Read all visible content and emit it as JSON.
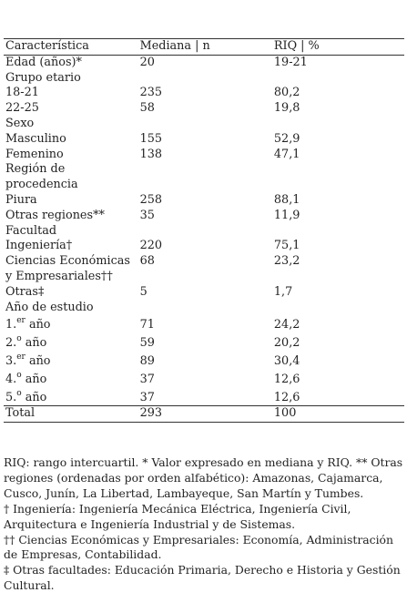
{
  "table": {
    "headers": [
      "Característica",
      "Mediana | n",
      "RIQ | %"
    ],
    "rows": [
      {
        "label": "Edad (años)*",
        "c2": "20",
        "c3": "19-21"
      },
      {
        "label": "Grupo etario",
        "c2": "",
        "c3": ""
      },
      {
        "label": "18-21",
        "c2": "235",
        "c3": "80,2"
      },
      {
        "label": "22-25",
        "c2": "58",
        "c3": "19,8"
      },
      {
        "label": "Sexo",
        "c2": "",
        "c3": ""
      },
      {
        "label": "Masculino",
        "c2": "155",
        "c3": "52,9"
      },
      {
        "label": "Femenino",
        "c2": "138",
        "c3": "47,1"
      },
      {
        "label": "Región de procedencia",
        "c2": "",
        "c3": ""
      },
      {
        "label": "Piura",
        "c2": "258",
        "c3": "88,1"
      },
      {
        "label": "Otras regiones**",
        "c2": "35",
        "c3": "11,9"
      },
      {
        "label": "Facultad",
        "c2": "",
        "c3": ""
      },
      {
        "label": "Ingeniería†",
        "c2": "220",
        "c3": "75,1"
      },
      {
        "label": "Ciencias Económicas y Empresariales††",
        "c2": "68",
        "c3": "23,2"
      },
      {
        "label": "Otras‡",
        "c2": "5",
        "c3": "1,7"
      },
      {
        "label": "Año de estudio",
        "c2": "",
        "c3": ""
      }
    ],
    "year_rows": [
      {
        "num": "1.",
        "sup": "er",
        "word": "año",
        "c2": "71",
        "c3": "24,2"
      },
      {
        "num": "2.",
        "sup": "o",
        "word": "año",
        "c2": "59",
        "c3": "20,2"
      },
      {
        "num": "3.",
        "sup": "er",
        "word": "año",
        "c2": "89",
        "c3": "30,4"
      },
      {
        "num": "4.",
        "sup": "o",
        "word": "año",
        "c2": "37",
        "c3": "12,6"
      },
      {
        "num": "5.",
        "sup": "o",
        "word": "año",
        "c2": "37",
        "c3": "12,6"
      }
    ],
    "total": {
      "label": "Total",
      "c2": "293",
      "c3": "100"
    }
  },
  "notes": [
    "RIQ: rango intercuartil. * Valor expresado en mediana y RIQ. ** Otras regiones (ordenadas por orden alfabético): Amazonas, Cajamarca, Cusco, Junín, La Libertad, Lambayeque, San Martín y Tumbes.",
    "† Ingeniería: Ingeniería Mecánica Eléctrica, Ingeniería Civil, Arquitectura e Ingeniería Industrial y de Sistemas.",
    "†† Ciencias Económicas y Empresariales: Economía, Administración de Empresas, Contabilidad.",
    "‡ Otras facultades: Educación Primaria, Derecho e Historia y Gestión Cultural."
  ]
}
